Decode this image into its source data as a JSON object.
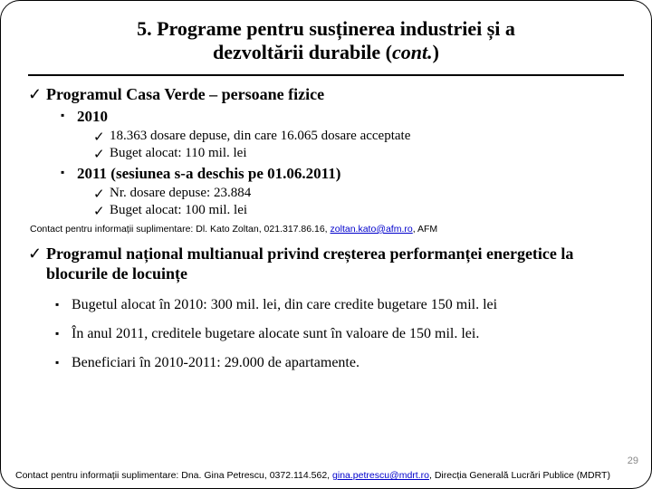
{
  "title_line1": "5. Programe pentru susținerea industriei și a",
  "title_line2": "dezvoltării durabile (",
  "title_cont": "cont.",
  "title_close": ")",
  "p1": {
    "heading": "Programul Casa Verde – persoane fizice",
    "y2010": {
      "label": "2010",
      "i1": "18.363 dosare depuse, din care 16.065 dosare acceptate",
      "i2": "Buget alocat: 110 mil. lei"
    },
    "y2011": {
      "label": "2011 (sesiunea s-a deschis pe 01.06.2011)",
      "i1": "Nr. dosare depuse: 23.884",
      "i2": "Buget alocat: 100 mil. lei"
    },
    "contact_pre": "Contact pentru informații suplimentare: Dl. Kato Zoltan, 021.317.86.16, ",
    "contact_link": "zoltan.kato@afm.ro",
    "contact_post": ", AFM"
  },
  "p2": {
    "heading": "Programul național multianual privind creșterea performanței energetice la blocurile de locuințe",
    "b1": "Bugetul alocat în 2010: 300 mil. lei, din care credite bugetare 150 mil. lei",
    "b2": "În anul 2011, creditele bugetare alocate sunt în valoare de 150 mil. lei.",
    "b3": "Beneficiari în 2010-2011: 29.000 de apartamente."
  },
  "footer": {
    "pre": "Contact pentru informații suplimentare: Dna. Gina Petrescu, 0372.114.562, ",
    "link": "gina.petrescu@mdrt.ro",
    "post": ", Direcția Generală Lucrări Publice (MDRT)"
  },
  "page_number": "29"
}
